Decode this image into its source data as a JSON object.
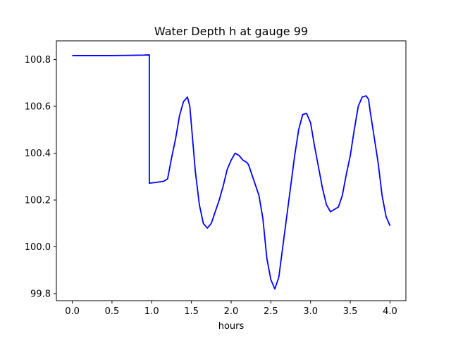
{
  "chart_data": {
    "type": "line",
    "title": "Water Depth h at gauge 99",
    "xlabel": "hours",
    "ylabel": "",
    "xlim": [
      -0.2,
      4.2
    ],
    "ylim": [
      99.77,
      100.88
    ],
    "x_ticks": [
      0.0,
      0.5,
      1.0,
      1.5,
      2.0,
      2.5,
      3.0,
      3.5,
      4.0
    ],
    "x_tick_labels": [
      "0.0",
      "0.5",
      "1.0",
      "1.5",
      "2.0",
      "2.5",
      "3.0",
      "3.5",
      "4.0"
    ],
    "y_ticks": [
      99.8,
      100.0,
      100.2,
      100.4,
      100.6,
      100.8
    ],
    "y_tick_labels": [
      "99.8",
      "100.0",
      "100.2",
      "100.4",
      "100.6",
      "100.8"
    ],
    "grid": false,
    "series": [
      {
        "color": "#0000ff",
        "x": [
          0.0,
          0.5,
          0.7,
          0.9,
          0.97,
          0.97,
          1.05,
          1.15,
          1.2,
          1.25,
          1.3,
          1.35,
          1.4,
          1.45,
          1.48,
          1.5,
          1.55,
          1.6,
          1.65,
          1.7,
          1.75,
          1.8,
          1.85,
          1.9,
          1.95,
          2.0,
          2.05,
          2.1,
          2.15,
          2.2,
          2.22,
          2.25,
          2.3,
          2.35,
          2.4,
          2.45,
          2.5,
          2.55,
          2.6,
          2.65,
          2.7,
          2.75,
          2.8,
          2.85,
          2.9,
          2.95,
          3.0,
          3.05,
          3.1,
          3.15,
          3.2,
          3.25,
          3.3,
          3.35,
          3.4,
          3.45,
          3.5,
          3.55,
          3.6,
          3.65,
          3.7,
          3.73,
          3.75,
          3.8,
          3.85,
          3.9,
          3.95,
          4.0
        ],
        "y": [
          100.817,
          100.817,
          100.818,
          100.819,
          100.82,
          100.272,
          100.275,
          100.28,
          100.29,
          100.38,
          100.46,
          100.56,
          100.62,
          100.64,
          100.6,
          100.52,
          100.32,
          100.18,
          100.1,
          100.08,
          100.1,
          100.15,
          100.2,
          100.26,
          100.33,
          100.37,
          100.4,
          100.39,
          100.37,
          100.36,
          100.35,
          100.32,
          100.27,
          100.22,
          100.12,
          99.95,
          99.86,
          99.82,
          99.87,
          100.0,
          100.13,
          100.26,
          100.39,
          100.5,
          100.565,
          100.57,
          100.53,
          100.43,
          100.34,
          100.25,
          100.18,
          100.15,
          100.16,
          100.17,
          100.22,
          100.31,
          100.39,
          100.5,
          100.6,
          100.64,
          100.645,
          100.63,
          100.58,
          100.47,
          100.36,
          100.22,
          100.13,
          100.09
        ]
      }
    ]
  }
}
